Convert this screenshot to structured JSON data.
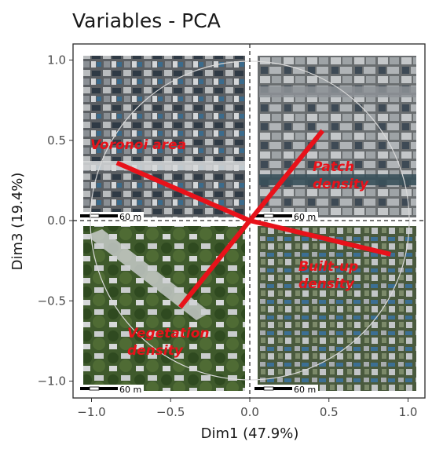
{
  "chart_data": {
    "type": "scatter",
    "title": "Variables - PCA",
    "xlabel": "Dim1 (47.9%)",
    "ylabel": "Dim3 (19.4%)",
    "xlim": [
      -1.1,
      1.1
    ],
    "ylim": [
      -1.05,
      1.05
    ],
    "x_ticks": [
      -1.0,
      -0.5,
      0.0,
      0.5,
      1.0
    ],
    "x_tick_labels": [
      "−1.0",
      "−0.5",
      "0.0",
      "0.5",
      "1.0"
    ],
    "y_ticks": [
      -1.0,
      -0.5,
      0.0,
      0.5,
      1.0
    ],
    "y_tick_labels": [
      "−1.0",
      "−0.5",
      "0.0",
      "0.5",
      "1.0"
    ],
    "grid": false,
    "correlation_circle": true,
    "vectors": [
      {
        "name": "Voronoi area",
        "x": -0.84,
        "y": 0.36
      },
      {
        "name": "Patch density",
        "x": 0.46,
        "y": 0.56
      },
      {
        "name": "Built-up density",
        "x": 0.89,
        "y": -0.21
      },
      {
        "name": "Vegetation density",
        "x": -0.44,
        "y": -0.54
      }
    ],
    "vector_color": "#e8121a",
    "background_images": "satellite imagery in four quadrants",
    "scale_bar_label": "60 m"
  }
}
